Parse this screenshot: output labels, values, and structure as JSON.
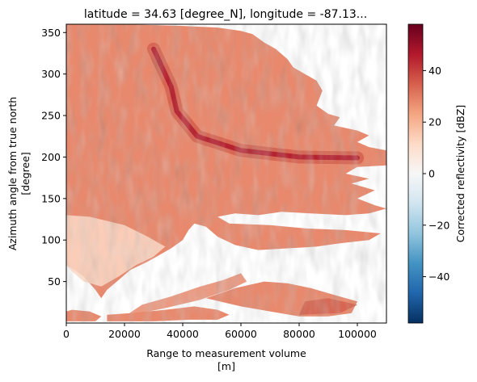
{
  "chart_data": {
    "type": "heatmap",
    "title": "latitude = 34.63 [degree_N], longitude = -87.13...",
    "xlabel_line1": "Range to measurement volume",
    "xlabel_line2": "[m]",
    "ylabel_line1": "Azimuth angle from true north",
    "ylabel_line2": "[degree]",
    "xlim": [
      0,
      110000
    ],
    "ylim": [
      0,
      360
    ],
    "x_ticks": [
      0,
      20000,
      40000,
      60000,
      80000,
      100000
    ],
    "x_tick_labels": [
      "0",
      "20000",
      "40000",
      "60000",
      "80000",
      "100000"
    ],
    "y_ticks": [
      50,
      100,
      150,
      200,
      250,
      300,
      350
    ],
    "y_tick_labels": [
      "50",
      "100",
      "150",
      "200",
      "250",
      "300",
      "350"
    ],
    "colorbar": {
      "label": "Corrected reflectivity [dBZ]",
      "range": [
        -58,
        58
      ],
      "ticks": [
        -40,
        -20,
        0,
        20,
        40
      ],
      "tick_labels": [
        "−40",
        "−20",
        "0",
        "20",
        "40"
      ],
      "colormap": "RdBu_r",
      "colors": [
        "#053061",
        "#2166ac",
        "#4393c3",
        "#92c5de",
        "#d1e5f0",
        "#f7f7f7",
        "#fddbc7",
        "#f4a582",
        "#d6604d",
        "#b2182b",
        "#67001f"
      ]
    },
    "features": {
      "background_value": "no data (white)",
      "dominant_dbz": 28,
      "high_band_dbz": 45,
      "high_band": [
        [
          30000,
          330
        ],
        [
          36000,
          285
        ],
        [
          38000,
          255
        ],
        [
          45000,
          225
        ],
        [
          60000,
          208
        ],
        [
          80000,
          200
        ],
        [
          100000,
          199
        ]
      ]
    }
  }
}
